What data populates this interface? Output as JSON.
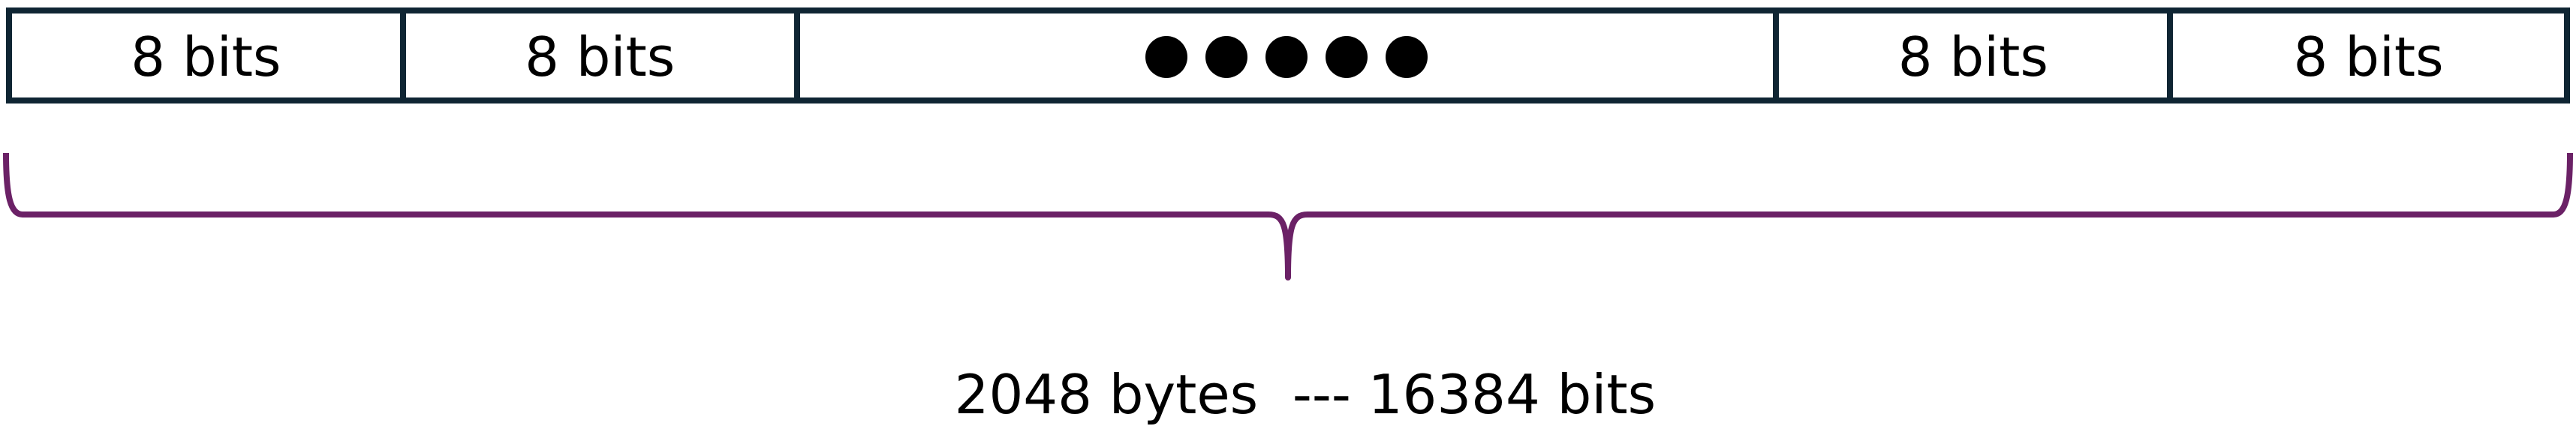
{
  "cells": [
    {
      "label": "8 bits"
    },
    {
      "label": "8 bits"
    },
    {
      "label": "●●●●●",
      "type": "ellipsis-dots",
      "dot_count": 5
    },
    {
      "label": "8 bits"
    },
    {
      "label": "8 bits"
    }
  ],
  "caption": "2048 bytes  --- 16384 bits",
  "colors": {
    "cell_border": "#0f2533",
    "brace": "#6b2166",
    "text": "#000000",
    "background": "#ffffff"
  }
}
